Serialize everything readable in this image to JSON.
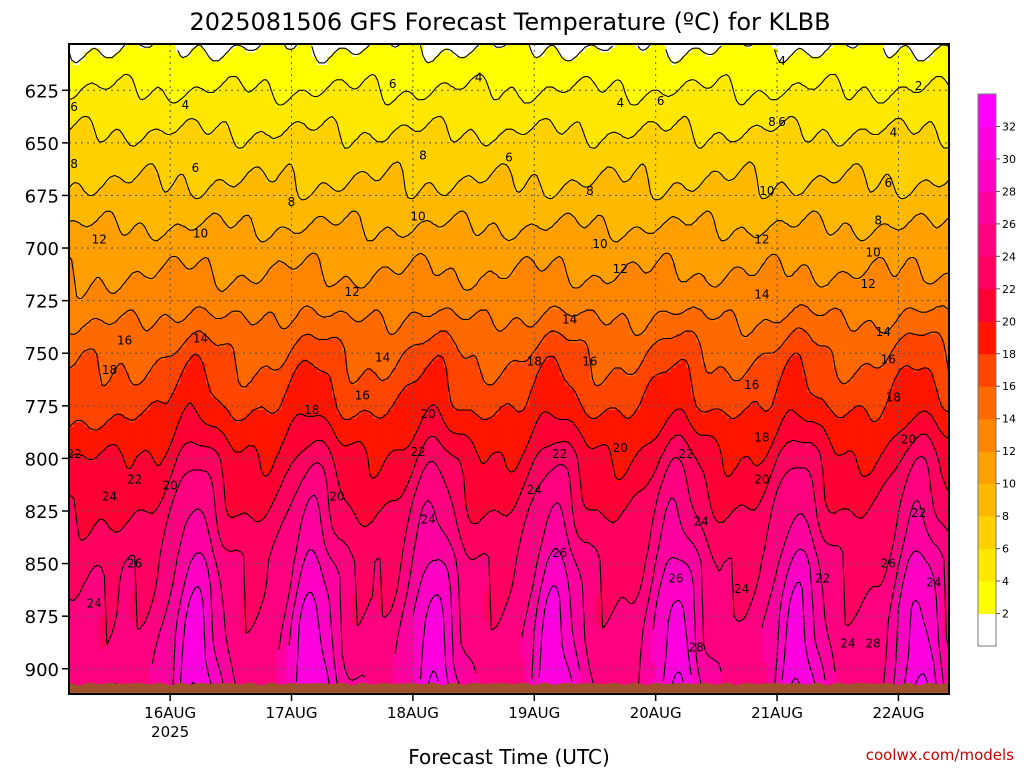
{
  "chart_data": {
    "type": "heatmap",
    "title": "2025081506 GFS Forecast Temperature (ºC) for KLBB",
    "xlabel": "Forecast Time (UTC)",
    "ylabel": "",
    "y_axis_scale": "linear, pressure decreasing upward (hPa)",
    "ylim": [
      912,
      603
    ],
    "xlim_hours_from_run": [
      -2,
      172
    ],
    "y_ticks": [
      "625",
      "650",
      "675",
      "700",
      "725",
      "750",
      "775",
      "800",
      "825",
      "850",
      "875",
      "900"
    ],
    "x_ticks": [
      {
        "label": "16AUG",
        "sublabel": "2025",
        "hours_from_run": 18
      },
      {
        "label": "17AUG",
        "sublabel": "",
        "hours_from_run": 42
      },
      {
        "label": "18AUG",
        "sublabel": "",
        "hours_from_run": 66
      },
      {
        "label": "19AUG",
        "sublabel": "",
        "hours_from_run": 90
      },
      {
        "label": "20AUG",
        "sublabel": "",
        "hours_from_run": 114
      },
      {
        "label": "21AUG",
        "sublabel": "",
        "hours_from_run": 138
      },
      {
        "label": "22AUG",
        "sublabel": "",
        "hours_from_run": 162
      }
    ],
    "grid": true,
    "colorbar": {
      "placement": "right",
      "levels": [
        0,
        2,
        4,
        6,
        8,
        10,
        12,
        14,
        16,
        18,
        20,
        22,
        24,
        26,
        28,
        30,
        32,
        34
      ],
      "tick_labels": [
        "2",
        "4",
        "6",
        "8",
        "10",
        "12",
        "14",
        "16",
        "18",
        "20",
        "22",
        "24",
        "26",
        "28",
        "30",
        "32"
      ],
      "colors": [
        "#ffffff",
        "#ffff00",
        "#ffe800",
        "#ffd000",
        "#ffb800",
        "#ff9f00",
        "#ff8400",
        "#ff6a00",
        "#ff4500",
        "#ff1500",
        "#ff0035",
        "#ff0060",
        "#ff0080",
        "#ff00a0",
        "#ff00c4",
        "#ff00e0",
        "#ff00ff"
      ]
    },
    "surface_color": "#a0522d",
    "temperature_profile": {
      "description": "approximate temperature (ºC) vs pressure (hPa), diurnal afternoon peaks each day",
      "pressure_hpa": [
        610,
        625,
        650,
        675,
        700,
        725,
        750,
        775,
        800,
        825,
        850,
        875,
        900
      ],
      "mean_temp_c": [
        2.5,
        4,
        6.5,
        8.5,
        11,
        13,
        16,
        18,
        21,
        23,
        25,
        26,
        27
      ],
      "afternoon_peak_hours": [
        23,
        46,
        70,
        94,
        118,
        142,
        166
      ],
      "daily_amplitude_at_900hpa": 5
    },
    "contour_labels": [
      {
        "text": "6",
        "hours": -1,
        "p": 633
      },
      {
        "text": "8",
        "hours": -1,
        "p": 660
      },
      {
        "text": "12",
        "hours": 4,
        "p": 696
      },
      {
        "text": "10",
        "hours": 24,
        "p": 693
      },
      {
        "text": "4",
        "hours": 21,
        "p": 632
      },
      {
        "text": "6",
        "hours": 23,
        "p": 662
      },
      {
        "text": "8",
        "hours": 42,
        "p": 678
      },
      {
        "text": "6",
        "hours": 62,
        "p": 622
      },
      {
        "text": "8",
        "hours": 68,
        "p": 656
      },
      {
        "text": "10",
        "hours": 67,
        "p": 685
      },
      {
        "text": "12",
        "hours": 54,
        "p": 721
      },
      {
        "text": "14",
        "hours": 24,
        "p": 743
      },
      {
        "text": "16",
        "hours": 9,
        "p": 744
      },
      {
        "text": "18",
        "hours": 6,
        "p": 758
      },
      {
        "text": "22",
        "hours": -1,
        "p": 798
      },
      {
        "text": "22",
        "hours": 11,
        "p": 810
      },
      {
        "text": "20",
        "hours": 18,
        "p": 813
      },
      {
        "text": "24",
        "hours": 6,
        "p": 818
      },
      {
        "text": "26",
        "hours": 11,
        "p": 850
      },
      {
        "text": "24",
        "hours": 3,
        "p": 869
      },
      {
        "text": "18",
        "hours": 46,
        "p": 777
      },
      {
        "text": "16",
        "hours": 56,
        "p": 770
      },
      {
        "text": "14",
        "hours": 60,
        "p": 752
      },
      {
        "text": "20",
        "hours": 51,
        "p": 818
      },
      {
        "text": "20",
        "hours": 69,
        "p": 779
      },
      {
        "text": "22",
        "hours": 67,
        "p": 797
      },
      {
        "text": "24",
        "hours": 69,
        "p": 829
      },
      {
        "text": "4",
        "hours": 79,
        "p": 619
      },
      {
        "text": "6",
        "hours": 85,
        "p": 657
      },
      {
        "text": "8",
        "hours": 101,
        "p": 673
      },
      {
        "text": "10",
        "hours": 103,
        "p": 698
      },
      {
        "text": "12",
        "hours": 107,
        "p": 710
      },
      {
        "text": "14",
        "hours": 97,
        "p": 734
      },
      {
        "text": "18",
        "hours": 90,
        "p": 754
      },
      {
        "text": "16",
        "hours": 101,
        "p": 754
      },
      {
        "text": "22",
        "hours": 95,
        "p": 798
      },
      {
        "text": "24",
        "hours": 90,
        "p": 815
      },
      {
        "text": "26",
        "hours": 95,
        "p": 845
      },
      {
        "text": "20",
        "hours": 107,
        "p": 795
      },
      {
        "text": "4",
        "hours": 107,
        "p": 631
      },
      {
        "text": "6",
        "hours": 115,
        "p": 630
      },
      {
        "text": "22",
        "hours": 120,
        "p": 798
      },
      {
        "text": "24",
        "hours": 123,
        "p": 830
      },
      {
        "text": "26",
        "hours": 118,
        "p": 857
      },
      {
        "text": "28",
        "hours": 122,
        "p": 890
      },
      {
        "text": "8",
        "hours": 137,
        "p": 640
      },
      {
        "text": "6",
        "hours": 139,
        "p": 640
      },
      {
        "text": "10",
        "hours": 136,
        "p": 673
      },
      {
        "text": "12",
        "hours": 135,
        "p": 696
      },
      {
        "text": "14",
        "hours": 135,
        "p": 722
      },
      {
        "text": "16",
        "hours": 133,
        "p": 765
      },
      {
        "text": "18",
        "hours": 135,
        "p": 790
      },
      {
        "text": "20",
        "hours": 135,
        "p": 810
      },
      {
        "text": "24",
        "hours": 131,
        "p": 862
      },
      {
        "text": "22",
        "hours": 147,
        "p": 857
      },
      {
        "text": "4",
        "hours": 139,
        "p": 611
      },
      {
        "text": "2",
        "hours": 166,
        "p": 623
      },
      {
        "text": "4",
        "hours": 161,
        "p": 645
      },
      {
        "text": "6",
        "hours": 160,
        "p": 669
      },
      {
        "text": "8",
        "hours": 158,
        "p": 687
      },
      {
        "text": "10",
        "hours": 157,
        "p": 702
      },
      {
        "text": "12",
        "hours": 156,
        "p": 717
      },
      {
        "text": "14",
        "hours": 159,
        "p": 740
      },
      {
        "text": "16",
        "hours": 160,
        "p": 753
      },
      {
        "text": "18",
        "hours": 161,
        "p": 771
      },
      {
        "text": "20",
        "hours": 164,
        "p": 791
      },
      {
        "text": "22",
        "hours": 166,
        "p": 826
      },
      {
        "text": "24",
        "hours": 169,
        "p": 859
      },
      {
        "text": "26",
        "hours": 160,
        "p": 850
      },
      {
        "text": "24",
        "hours": 152,
        "p": 888
      },
      {
        "text": "28",
        "hours": 157,
        "p": 888
      }
    ]
  },
  "credit": "coolwx.com/models"
}
